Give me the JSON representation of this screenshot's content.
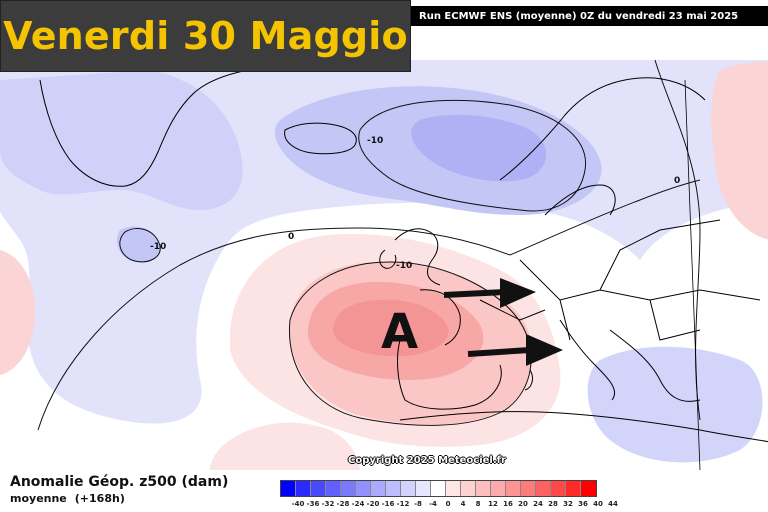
{
  "title": "Venerdi 30 Maggio",
  "run_info": "Run ECMWF ENS (moyenne) 0Z du vendredi 23 mai 2025",
  "copyright": "Copyright 2025 Meteociel.fr",
  "legend": {
    "title": "Anomalie Géop. z500 (dam)",
    "subtitle": "moyenne",
    "lead": "(+168h)",
    "ticks": [
      "-40",
      "-36",
      "-32",
      "-28",
      "-24",
      "-20",
      "-16",
      "-12",
      "-8",
      "-4",
      "0",
      "4",
      "8",
      "12",
      "16",
      "20",
      "24",
      "28",
      "32",
      "36",
      "40",
      "44"
    ],
    "colors": [
      "#0000ff",
      "#2a2aff",
      "#4848ff",
      "#6060ff",
      "#7a7aff",
      "#9292ff",
      "#aaaaff",
      "#bebeff",
      "#d2d2ff",
      "#e6e6ff",
      "#ffffff",
      "#ffe6e6",
      "#ffd2d2",
      "#ffbebe",
      "#ffaaaa",
      "#ff9292",
      "#ff7a7a",
      "#ff6060",
      "#ff4848",
      "#ff2a2a",
      "#ff0000"
    ]
  },
  "map": {
    "high_label": "A",
    "contour_labels": [
      "-10",
      "-10",
      "0",
      "-10",
      "0"
    ],
    "arrow_color": "#111111",
    "land_outline_color": "#000000",
    "neg_anomaly_color": "#c8cbf7",
    "pos_anomaly_color": "#f8b8b8"
  }
}
